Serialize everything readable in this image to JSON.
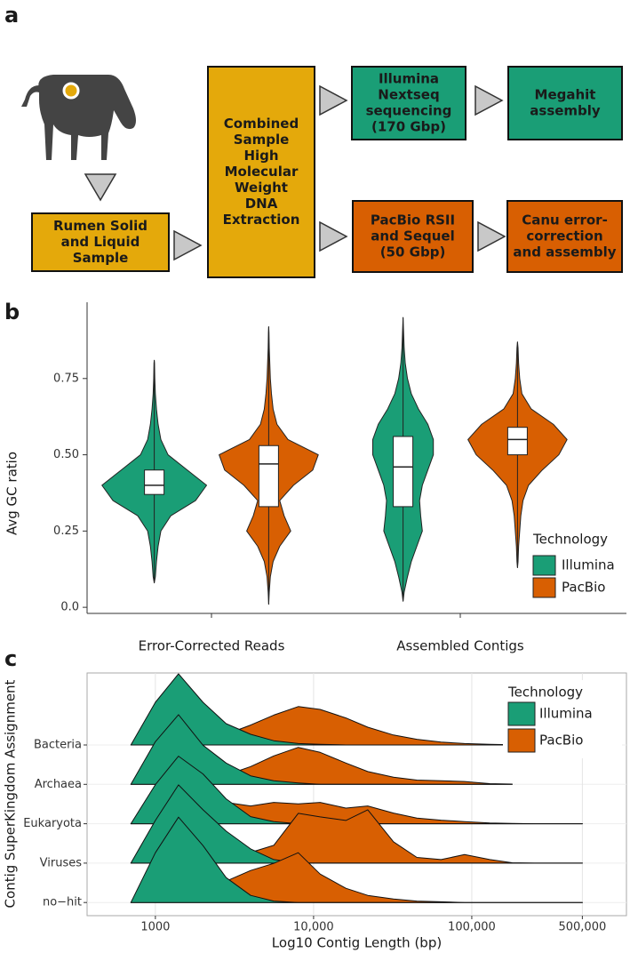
{
  "panel_labels": [
    "a",
    "b",
    "c"
  ],
  "diagram": {
    "nodes": [
      {
        "lines": [
          "Rumen Solid",
          "and Liquid",
          "Sample"
        ],
        "color": "#E4A90B"
      },
      {
        "lines": [
          "Combined",
          "Sample",
          "High",
          "Molecular",
          "Weight",
          "DNA",
          "Extraction"
        ],
        "color": "#E4A90B"
      },
      {
        "lines": [
          "Illumina",
          "Nextseq",
          "sequencing",
          "(170 Gbp)"
        ],
        "color": "#1A9E76"
      },
      {
        "lines": [
          "Megahit",
          "assembly"
        ],
        "color": "#1A9E76"
      },
      {
        "lines": [
          "PacBio RSII",
          "and Sequel",
          "(50 Gbp)"
        ],
        "color": "#D85F02"
      },
      {
        "lines": [
          "Canu error-",
          "correction",
          "and assembly"
        ],
        "color": "#D85F02"
      }
    ]
  },
  "chart_data": [
    {
      "type": "violin",
      "ylabel": "Avg GC ratio",
      "categories": [
        "Error-Corrected Reads",
        "Assembled Contigs"
      ],
      "ylim": [
        -0.02,
        1.0
      ],
      "yticks": [
        {
          "value": 0,
          "label": "0.0"
        },
        0.25,
        {
          "value": 0.5,
          "label": "0.50"
        },
        0.75
      ],
      "legend_title": "Technology",
      "legend": "right",
      "density_at": [
        0,
        0.05,
        0.1,
        0.15,
        0.2,
        0.25,
        0.3,
        0.35,
        0.4,
        0.45,
        0.5,
        0.55,
        0.6,
        0.65,
        0.7,
        0.75,
        0.8,
        0.85,
        0.9,
        0.95
      ],
      "series": [
        {
          "name": "Illumina",
          "color": "#1A9E76",
          "stats": [
            {
              "min": 0.08,
              "q1": 0.37,
              "median": 0.4,
              "q3": 0.45,
              "max": 0.81
            },
            {
              "min": 0.02,
              "q1": 0.33,
              "median": 0.46,
              "q3": 0.56,
              "max": 0.95
            }
          ],
          "density": [
            [
              0,
              0,
              0.02,
              0.04,
              0.07,
              0.12,
              0.3,
              0.75,
              0.95,
              0.6,
              0.25,
              0.12,
              0.07,
              0.04,
              0.02,
              0.01,
              0.005,
              0,
              0,
              0
            ],
            [
              0,
              0.02,
              0.08,
              0.15,
              0.25,
              0.35,
              0.32,
              0.3,
              0.35,
              0.45,
              0.55,
              0.55,
              0.45,
              0.28,
              0.15,
              0.08,
              0.04,
              0.02,
              0.01,
              0
            ]
          ]
        },
        {
          "name": "PacBio",
          "color": "#D85F02",
          "stats": [
            {
              "min": 0.01,
              "q1": 0.33,
              "median": 0.47,
              "q3": 0.53,
              "max": 0.92
            },
            {
              "min": 0.13,
              "q1": 0.5,
              "median": 0.55,
              "q3": 0.59,
              "max": 0.87
            }
          ],
          "density": [
            [
              0,
              0.01,
              0.03,
              0.08,
              0.2,
              0.4,
              0.28,
              0.2,
              0.45,
              0.8,
              0.9,
              0.35,
              0.15,
              0.08,
              0.05,
              0.03,
              0.02,
              0.01,
              0.005,
              0
            ],
            [
              0,
              0,
              0,
              0.01,
              0.02,
              0.04,
              0.06,
              0.1,
              0.2,
              0.45,
              0.75,
              0.9,
              0.65,
              0.25,
              0.08,
              0.04,
              0.02,
              0.01,
              0,
              0
            ]
          ]
        }
      ]
    },
    {
      "type": "ridgeline",
      "xlabel": "Log10 Contig Length (bp)",
      "ylabel": "Contig SuperKingdom Assignment",
      "xscale": "log",
      "xlim": [
        370,
        950000
      ],
      "xticks": [
        1000,
        {
          "value": 10000,
          "label": "10,000"
        },
        {
          "value": 100000,
          "label": "100,000"
        },
        {
          "value": 500000,
          "label": "500,000"
        }
      ],
      "grid": true,
      "legend_title": "Technology",
      "legend": "upper right",
      "categories": [
        "Bacteria",
        "Archaea",
        "Eukaryota",
        "Viruses",
        "no−hit"
      ],
      "x": [
        700,
        1000,
        1400,
        2000,
        2800,
        4000,
        5600,
        8000,
        11000,
        16000,
        22000,
        32000,
        45000,
        64000,
        90000,
        130000,
        180000,
        250000,
        360000,
        500000
      ],
      "series": [
        {
          "name": "Illumina",
          "color": "#1A9E76",
          "values": [
            [
              0,
              0.6,
              1.0,
              0.6,
              0.3,
              0.15,
              0.06,
              0.02,
              0.01,
              0,
              0,
              0,
              0,
              0,
              0,
              0,
              0,
              null,
              null,
              null
            ],
            [
              0,
              0.6,
              0.98,
              0.55,
              0.3,
              0.12,
              0.05,
              0.02,
              0,
              0,
              0,
              0,
              0,
              0,
              0,
              0,
              0,
              null,
              null,
              null
            ],
            [
              0,
              0.55,
              0.95,
              0.7,
              0.35,
              0.1,
              0.03,
              0,
              0,
              0,
              0,
              0,
              0,
              0,
              0,
              0,
              0,
              0,
              0,
              0
            ],
            [
              0,
              0.6,
              1.1,
              0.75,
              0.45,
              0.2,
              0.05,
              0,
              0,
              0,
              0,
              0,
              0,
              0,
              0,
              0,
              0,
              0,
              0,
              0
            ],
            [
              0,
              0.7,
              1.2,
              0.8,
              0.35,
              0.1,
              0.02,
              0,
              0,
              0,
              0,
              0,
              0,
              0,
              0,
              0,
              0,
              0,
              0,
              0
            ]
          ]
        },
        {
          "name": "PacBio",
          "color": "#D85F02",
          "values": [
            [
              0,
              0.01,
              0.03,
              0.07,
              0.15,
              0.28,
              0.42,
              0.54,
              0.5,
              0.38,
              0.25,
              0.14,
              0.08,
              0.04,
              0.02,
              0.01,
              0.003,
              null,
              null,
              null
            ],
            [
              0,
              0.01,
              0.03,
              0.06,
              0.13,
              0.25,
              0.4,
              0.52,
              0.45,
              0.3,
              0.18,
              0.1,
              0.06,
              0.05,
              0.04,
              0.01,
              0.003,
              null,
              null,
              null
            ],
            [
              0,
              0.02,
              0.08,
              0.2,
              0.3,
              0.25,
              0.3,
              0.28,
              0.3,
              0.22,
              0.25,
              0.15,
              0.08,
              0.05,
              0.03,
              0.01,
              0.005,
              0,
              0,
              0
            ],
            [
              0,
              0.05,
              0.25,
              0.25,
              0.2,
              0.15,
              0.25,
              0.7,
              0.65,
              0.6,
              0.75,
              0.3,
              0.08,
              0.05,
              0.12,
              0.05,
              0.005,
              0,
              0,
              0
            ],
            [
              0,
              0.05,
              0.1,
              0.2,
              0.3,
              0.45,
              0.55,
              0.7,
              0.4,
              0.2,
              0.1,
              0.05,
              0.02,
              0.01,
              0,
              0,
              0,
              0,
              0,
              0
            ]
          ]
        }
      ]
    }
  ]
}
